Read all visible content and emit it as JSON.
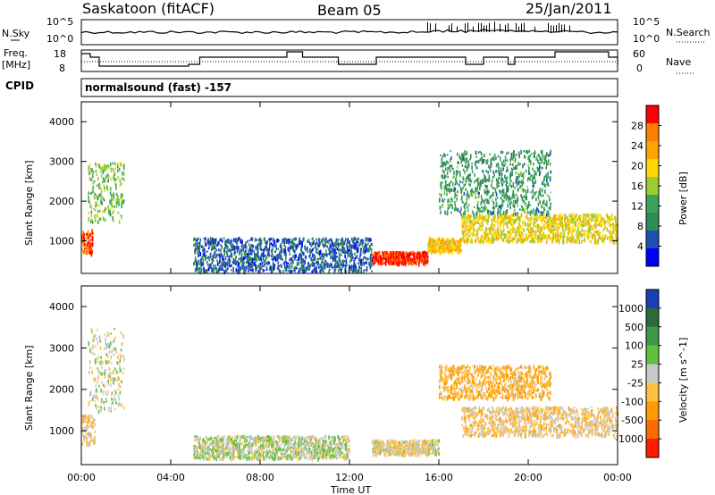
{
  "header": {
    "station": "Saskatoon (fitACF)",
    "beam": "Beam 05",
    "date": "25/Jan/2011"
  },
  "noise_panel": {
    "left_label": "N.Sky",
    "right_label": "N.Search",
    "left_ticks": [
      "10^5",
      "10^0"
    ],
    "right_ticks": [
      "10^5",
      "10^0"
    ]
  },
  "freq_panel": {
    "left_label_1": "Freq.",
    "left_label_2": "[MHz]",
    "right_label": "Nave",
    "left_ticks": [
      "18",
      "8"
    ],
    "right_ticks": [
      "60",
      "0"
    ]
  },
  "cpid": {
    "label": "CPID",
    "value": "normalsound (fast) -157"
  },
  "power_panel": {
    "ylabel": "Slant Range [km]",
    "yticks": [
      "4000",
      "3000",
      "2000",
      "1000"
    ],
    "colorbar_label": "Power [dB]",
    "colorbar_ticks": [
      "28",
      "24",
      "20",
      "16",
      "12",
      "8",
      "4"
    ],
    "colors": [
      "#0000ff",
      "#1f4fb0",
      "#2e8b57",
      "#3aa55a",
      "#9acd32",
      "#ffd700",
      "#ffa500",
      "#ff7f00",
      "#ff0000"
    ]
  },
  "velocity_panel": {
    "ylabel": "Slant Range [km]",
    "yticks": [
      "4000",
      "3000",
      "2000",
      "1000"
    ],
    "colorbar_label": "Velocity [m s^-1]",
    "colorbar_ticks": [
      "1000",
      "500",
      "100",
      "25",
      "-25",
      "-100",
      "-500",
      "-1000"
    ],
    "colors": [
      "#1a3fb5",
      "#2e6b3a",
      "#3a9a4a",
      "#60c040",
      "#c8c8c8",
      "#ffc040",
      "#ff9a00",
      "#ff6a00",
      "#ff1a00"
    ]
  },
  "x_axis": {
    "label": "Time UT",
    "ticks": [
      "00:00",
      "04:00",
      "08:00",
      "12:00",
      "16:00",
      "20:00",
      "00:00"
    ]
  },
  "chart_data": [
    {
      "type": "heatmap",
      "title": "Saskatoon (fitACF) Beam 05 25/Jan/2011",
      "xlabel": "Time UT",
      "ylabel": "Slant Range [km]",
      "xlim": [
        0,
        24
      ],
      "ylim": [
        180,
        4500
      ],
      "z_label": "Power [dB]",
      "zlim": [
        0,
        30
      ],
      "regions": [
        {
          "t0": 0.0,
          "t1": 0.5,
          "r0": 700,
          "r1": 1300,
          "value": 26
        },
        {
          "t0": 0.3,
          "t1": 1.9,
          "r0": 1500,
          "r1": 3000,
          "value": 14
        },
        {
          "t0": 13.0,
          "t1": 15.5,
          "r0": 450,
          "r1": 750,
          "value": 28
        },
        {
          "t0": 15.5,
          "t1": 17.0,
          "r0": 750,
          "r1": 1100,
          "value": 20
        },
        {
          "t0": 17.0,
          "t1": 24.0,
          "r0": 1000,
          "r1": 1700,
          "value": 18
        },
        {
          "t0": 16.0,
          "t1": 21.0,
          "r0": 1700,
          "r1": 3300,
          "value": 10
        },
        {
          "t0": 5.0,
          "t1": 13.0,
          "r0": 250,
          "r1": 1100,
          "value": 6
        }
      ]
    },
    {
      "type": "heatmap",
      "title": "",
      "xlabel": "Time UT",
      "ylabel": "Slant Range [km]",
      "xlim": [
        0,
        24
      ],
      "ylim": [
        180,
        4500
      ],
      "z_label": "Velocity [m s^-1]",
      "zlim": [
        -1000,
        1000
      ],
      "regions": [
        {
          "t0": 0.0,
          "t1": 0.6,
          "r0": 700,
          "r1": 1400,
          "value": -150
        },
        {
          "t0": 0.3,
          "t1": 1.9,
          "r0": 1500,
          "r1": 3500,
          "value": 0
        },
        {
          "t0": 13.0,
          "t1": 16.0,
          "r0": 450,
          "r1": 800,
          "value": -80
        },
        {
          "t0": 16.0,
          "t1": 21.0,
          "r0": 1800,
          "r1": 2600,
          "value": -300
        },
        {
          "t0": 17.0,
          "t1": 24.0,
          "r0": 900,
          "r1": 1600,
          "value": -150
        },
        {
          "t0": 5.0,
          "t1": 12.0,
          "r0": 350,
          "r1": 900,
          "value": 60
        }
      ]
    }
  ]
}
